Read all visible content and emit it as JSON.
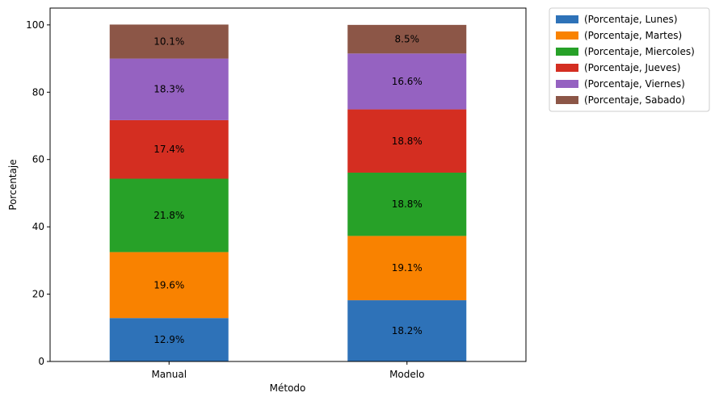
{
  "chart_data": {
    "type": "bar",
    "stacked": true,
    "categories": [
      "Manual",
      "Modelo"
    ],
    "xlabel": "Método",
    "ylabel": "Porcentaje",
    "ylim": [
      0,
      105
    ],
    "yticks": [
      0,
      20,
      40,
      60,
      80,
      100
    ],
    "grid": false,
    "legend_position": "outside-top-right",
    "series": [
      {
        "name": "(Porcentaje, Lunes)",
        "color": "#2e72b8",
        "values": [
          12.9,
          18.2
        ],
        "labels": [
          "12.9%",
          "18.2%"
        ]
      },
      {
        "name": "(Porcentaje, Martes)",
        "color": "#f98200",
        "values": [
          19.6,
          19.1
        ],
        "labels": [
          "19.6%",
          "19.1%"
        ]
      },
      {
        "name": "(Porcentaje, Miercoles)",
        "color": "#27a128",
        "values": [
          21.8,
          18.8
        ],
        "labels": [
          "21.8%",
          "18.8%"
        ]
      },
      {
        "name": "(Porcentaje, Jueves)",
        "color": "#d42e21",
        "values": [
          17.4,
          18.8
        ],
        "labels": [
          "17.4%",
          "18.8%"
        ]
      },
      {
        "name": "(Porcentaje, Viernes)",
        "color": "#9562c1",
        "values": [
          18.3,
          16.6
        ],
        "labels": [
          "18.3%",
          "16.6%"
        ]
      },
      {
        "name": "(Porcentaje, Sabado)",
        "color": "#8c5647",
        "values": [
          10.1,
          8.5
        ],
        "labels": [
          "10.1%",
          "8.5%"
        ]
      }
    ]
  }
}
